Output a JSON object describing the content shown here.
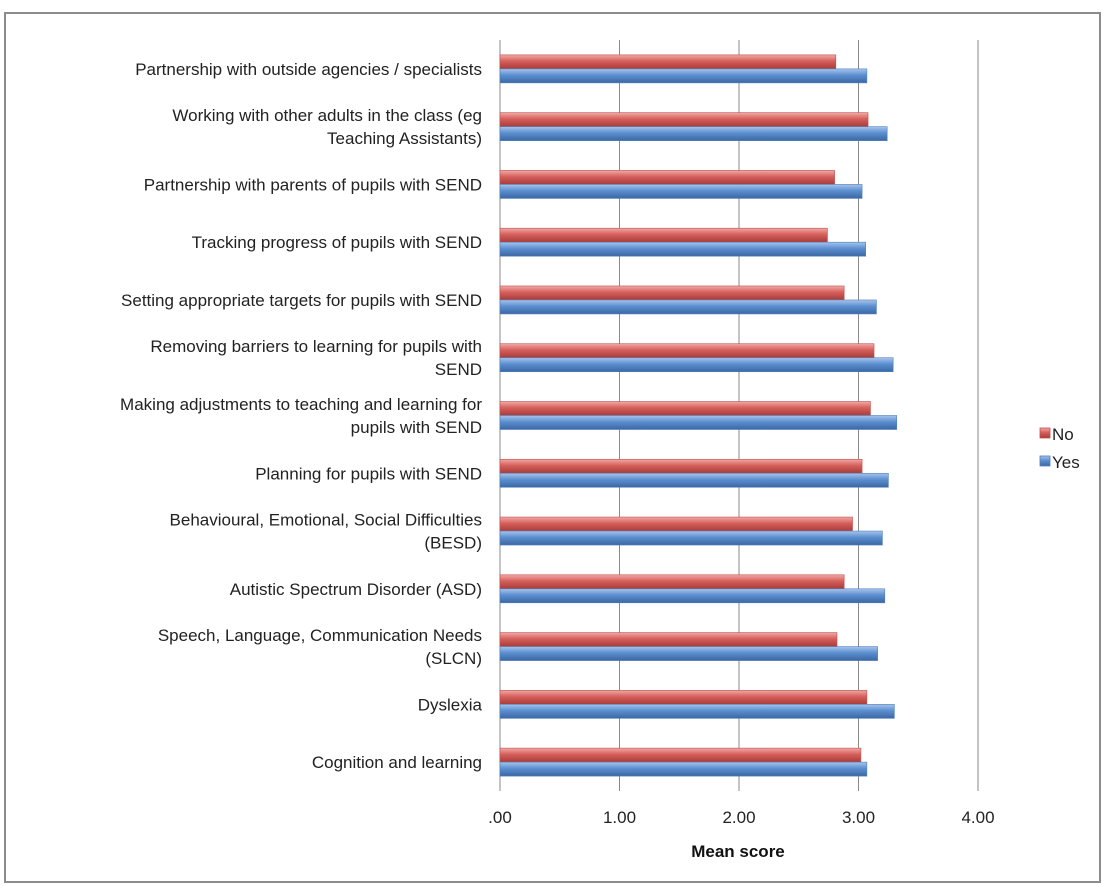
{
  "chart_data": {
    "type": "bar",
    "orientation": "horizontal",
    "title": "",
    "xlabel": "Mean score",
    "ylabel": "",
    "xlim": [
      0,
      4
    ],
    "x_ticks": [
      0,
      1,
      2,
      3,
      4
    ],
    "x_tick_labels": [
      ".00",
      "1.00",
      "2.00",
      "3.00",
      "4.00"
    ],
    "grid": "vertical major gridlines",
    "legend_position": "right",
    "categories": [
      "Partnership with outside agencies / specialists",
      "Working with other adults in the class (eg Teaching Assistants)",
      "Partnership with parents of pupils with SEND",
      "Tracking progress of pupils with SEND",
      "Setting appropriate targets for pupils with SEND",
      "Removing barriers to learning for pupils with SEND",
      "Making adjustments to teaching and learning for pupils with SEND",
      "Planning for pupils with SEND",
      "Behavioural, Emotional, Social Difficulties (BESD)",
      "Autistic Spectrum Disorder (ASD)",
      "Speech, Language, Communication Needs (SLCN)",
      "Dyslexia",
      "Cognition and learning"
    ],
    "category_label_lines": [
      [
        "Partnership with outside agencies / specialists"
      ],
      [
        "Working with other adults in the class (eg",
        "Teaching Assistants)"
      ],
      [
        "Partnership with parents of pupils with SEND"
      ],
      [
        "Tracking progress of pupils with SEND"
      ],
      [
        "Setting appropriate targets for pupils with SEND"
      ],
      [
        "Removing barriers to learning for pupils with",
        "SEND"
      ],
      [
        "Making adjustments to teaching and learning for",
        "pupils with SEND"
      ],
      [
        "Planning for pupils with SEND"
      ],
      [
        "Behavioural, Emotional, Social Difficulties",
        "(BESD)"
      ],
      [
        "Autistic Spectrum Disorder (ASD)"
      ],
      [
        "Speech, Language, Communication Needs",
        "(SLCN)"
      ],
      [
        "Dyslexia"
      ],
      [
        "Cognition and learning"
      ]
    ],
    "series": [
      {
        "name": "No",
        "color": "#c0504d",
        "values": [
          2.81,
          3.08,
          2.8,
          2.74,
          2.88,
          3.13,
          3.1,
          3.03,
          2.95,
          2.88,
          2.82,
          3.07,
          3.02
        ]
      },
      {
        "name": "Yes",
        "color": "#4f81bd",
        "values": [
          3.07,
          3.24,
          3.03,
          3.06,
          3.15,
          3.29,
          3.32,
          3.25,
          3.2,
          3.22,
          3.16,
          3.3,
          3.07
        ]
      }
    ]
  }
}
